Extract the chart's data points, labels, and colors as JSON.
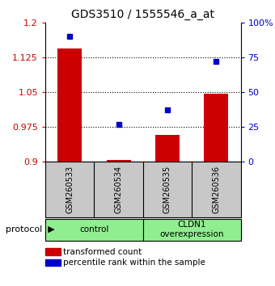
{
  "title": "GDS3510 / 1555546_a_at",
  "samples": [
    "GSM260533",
    "GSM260534",
    "GSM260535",
    "GSM260536"
  ],
  "red_values": [
    1.145,
    0.903,
    0.958,
    1.047
  ],
  "blue_values": [
    90,
    27,
    37,
    72
  ],
  "ylim_left": [
    0.9,
    1.2
  ],
  "ylim_right": [
    0,
    100
  ],
  "yticks_left": [
    0.9,
    0.975,
    1.05,
    1.125,
    1.2
  ],
  "ytick_labels_left": [
    "0.9",
    "0.975",
    "1.05",
    "1.125",
    "1.2"
  ],
  "yticks_right": [
    0,
    25,
    50,
    75,
    100
  ],
  "ytick_labels_right": [
    "0",
    "25",
    "50",
    "75",
    "100%"
  ],
  "groups": [
    {
      "label": "control",
      "span": [
        0,
        2
      ]
    },
    {
      "label": "CLDN1\noverexpression",
      "span": [
        2,
        4
      ]
    }
  ],
  "bar_color": "#CC0000",
  "dot_color": "#0000CC",
  "bar_width": 0.5,
  "legend_items": [
    {
      "color": "#CC0000",
      "label": "transformed count"
    },
    {
      "color": "#0000CC",
      "label": "percentile rank within the sample"
    }
  ],
  "sample_box_color": "#C8C8C8",
  "group_color": "#90EE90",
  "background_color": "#FFFFFF"
}
